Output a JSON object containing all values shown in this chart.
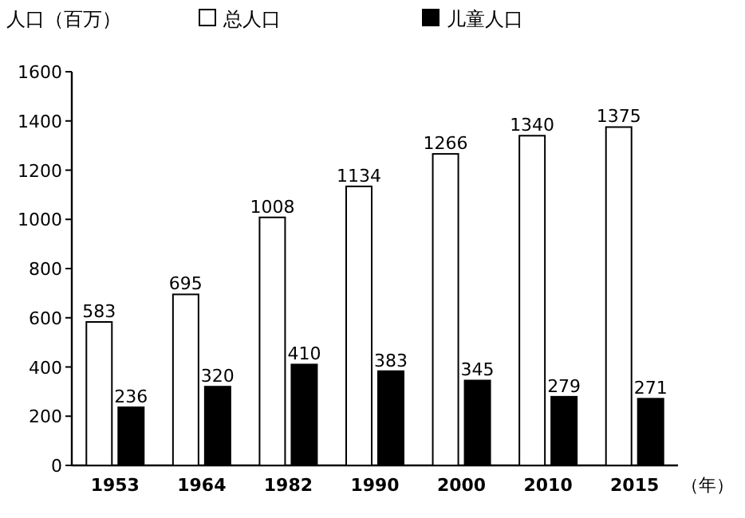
{
  "chart_data": {
    "type": "bar",
    "ylabel": "人口（百万）",
    "xlabel": "（年）",
    "categories": [
      "1953",
      "1964",
      "1982",
      "1990",
      "2000",
      "2010",
      "2015"
    ],
    "series": [
      {
        "name": "总人口",
        "color": "#ffffff",
        "values": [
          583,
          695,
          1008,
          1134,
          1266,
          1340,
          1375
        ]
      },
      {
        "name": "儿童人口",
        "color": "#000000",
        "values": [
          236,
          320,
          410,
          383,
          345,
          279,
          271
        ]
      }
    ],
    "ylim": [
      0,
      1600
    ],
    "yticks": [
      0,
      200,
      400,
      600,
      800,
      1000,
      1200,
      1400,
      1600
    ],
    "data_labels": true,
    "legend": "top",
    "grid": false
  }
}
